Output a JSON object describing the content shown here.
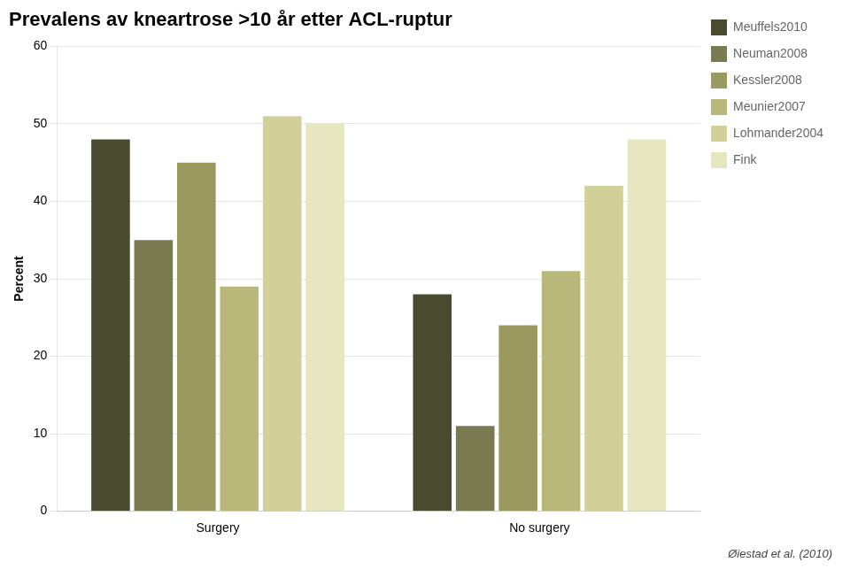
{
  "chart_data": {
    "type": "bar",
    "title": "Prevalens av kneartrose >10 år etter ACL-ruptur",
    "ylabel": "Percent",
    "footnote": "Øiestad et al. (2010)",
    "categories": [
      "Surgery",
      "No surgery"
    ],
    "series": [
      {
        "name": "Meuffels2010",
        "color": "#4a4a30",
        "values": [
          48,
          28
        ]
      },
      {
        "name": "Neuman2008",
        "color": "#7a7a50",
        "values": [
          35,
          11
        ]
      },
      {
        "name": "Kessler2008",
        "color": "#9a9a60",
        "values": [
          45,
          24
        ]
      },
      {
        "name": "Meunier2007",
        "color": "#b8b87a",
        "values": [
          29,
          31
        ]
      },
      {
        "name": "Lohmander2004",
        "color": "#d0d098",
        "values": [
          51,
          42
        ]
      },
      {
        "name": "Fink",
        "color": "#e6e6c0",
        "values": [
          50,
          48
        ]
      }
    ],
    "ylim": [
      0,
      60
    ],
    "yticks": [
      0,
      10,
      20,
      30,
      40,
      50,
      60
    ],
    "grid": true,
    "legend": "right"
  }
}
